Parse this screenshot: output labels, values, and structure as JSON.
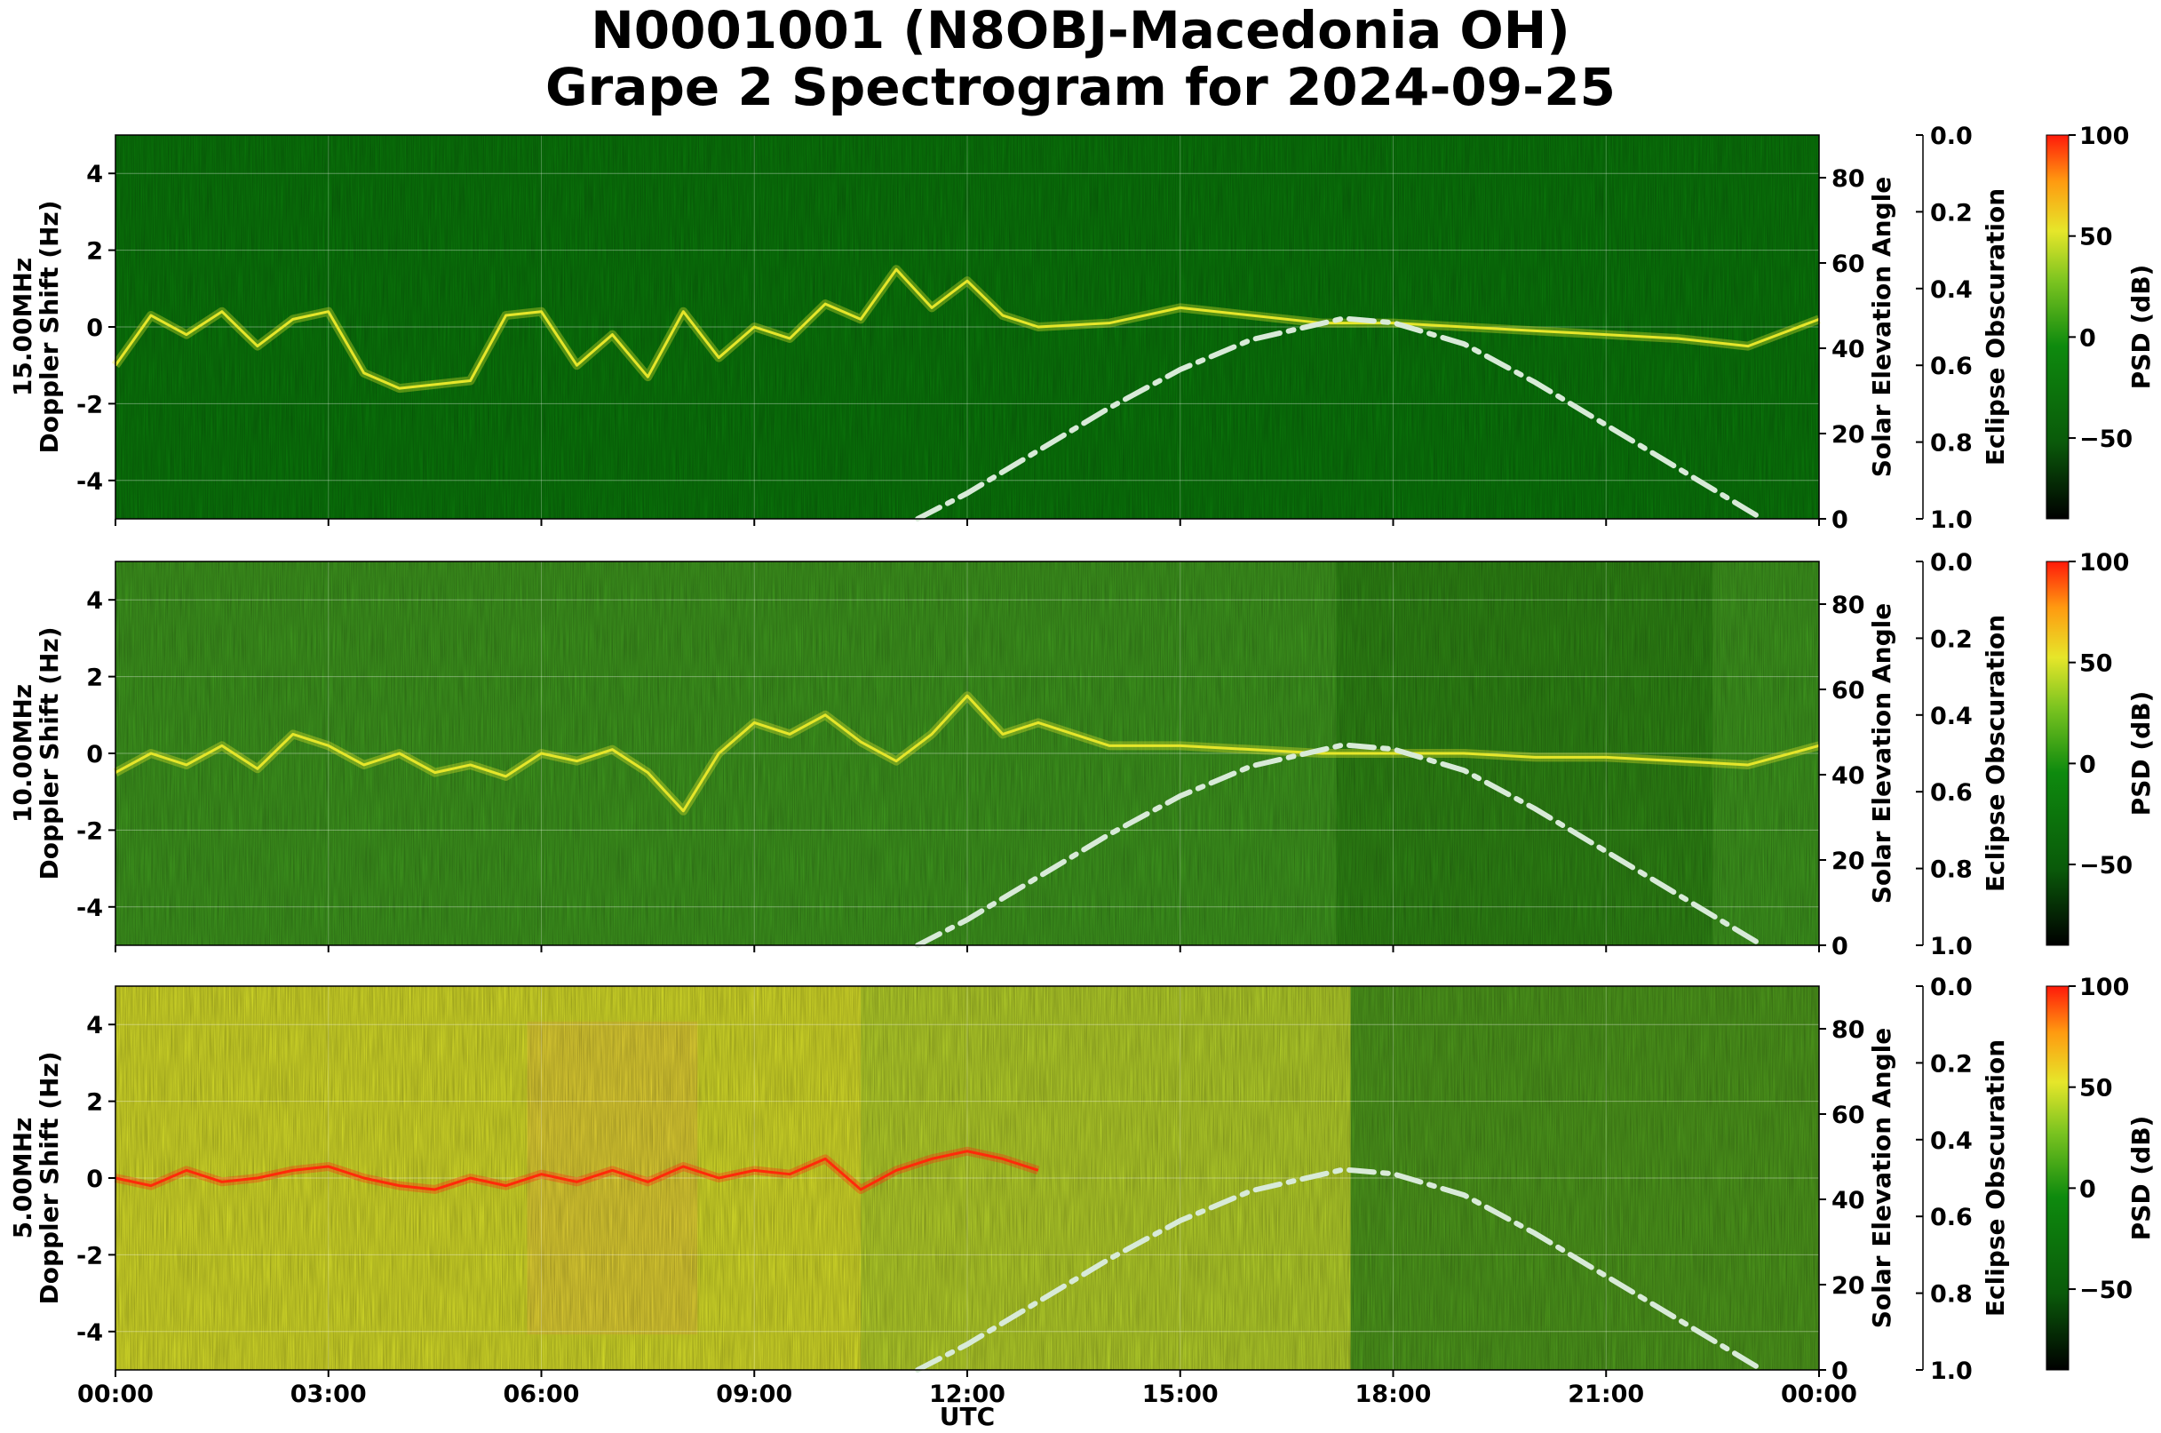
{
  "figure": {
    "title_line1": "N0001001 (N8OBJ-Macedonia OH)",
    "title_line2": "Grape 2 Spectrogram for 2024-09-25",
    "xlabel": "UTC"
  },
  "chart_data": [
    {
      "type": "heatmap",
      "panel": "15.00MHz",
      "ylabel_line1": "15.00MHz",
      "ylabel_line2": "Doppler Shift (Hz)",
      "xlabel": "UTC",
      "x_ticks": [
        "00:00",
        "03:00",
        "06:00",
        "09:00",
        "12:00",
        "15:00",
        "18:00",
        "21:00",
        "00:00"
      ],
      "y_ticks": [
        -4,
        -2,
        0,
        2,
        4
      ],
      "ylim": [
        -5,
        5
      ],
      "xlim_hours": [
        0,
        24
      ],
      "background_level": "low",
      "doppler_trace_hz": [
        [
          0,
          -1.0
        ],
        [
          0.5,
          0.3
        ],
        [
          1,
          -0.2
        ],
        [
          1.5,
          0.4
        ],
        [
          2,
          -0.5
        ],
        [
          2.5,
          0.2
        ],
        [
          3,
          0.4
        ],
        [
          3.5,
          -1.2
        ],
        [
          4,
          -1.6
        ],
        [
          5,
          -1.4
        ],
        [
          5.5,
          0.3
        ],
        [
          6,
          0.4
        ],
        [
          6.5,
          -1.0
        ],
        [
          7,
          -0.2
        ],
        [
          7.5,
          -1.3
        ],
        [
          8,
          0.4
        ],
        [
          8.5,
          -0.8
        ],
        [
          9,
          0.0
        ],
        [
          9.5,
          -0.3
        ],
        [
          10,
          0.6
        ],
        [
          10.5,
          0.2
        ],
        [
          11,
          1.5
        ],
        [
          11.5,
          0.5
        ],
        [
          12,
          1.2
        ],
        [
          12.5,
          0.3
        ],
        [
          13,
          0.0
        ],
        [
          14,
          0.1
        ],
        [
          15,
          0.5
        ],
        [
          16,
          0.3
        ],
        [
          17,
          0.1
        ],
        [
          18,
          0.1
        ],
        [
          19,
          0.0
        ],
        [
          20,
          -0.1
        ],
        [
          21,
          -0.2
        ],
        [
          22,
          -0.3
        ],
        [
          23,
          -0.5
        ],
        [
          24,
          0.2
        ]
      ],
      "solar_elevation_right_axis": {
        "label": "Solar Elevation Angle",
        "ticks": [
          0,
          20,
          40,
          60,
          80
        ],
        "ylim": [
          0,
          90
        ]
      },
      "solar_elevation_deg": [
        [
          11.3,
          0
        ],
        [
          12,
          6
        ],
        [
          13,
          16
        ],
        [
          14,
          26
        ],
        [
          15,
          35
        ],
        [
          16,
          42
        ],
        [
          17.3,
          47
        ],
        [
          18,
          46
        ],
        [
          19,
          41
        ],
        [
          20,
          32
        ],
        [
          21,
          22
        ],
        [
          22,
          12
        ],
        [
          23,
          2
        ],
        [
          23.2,
          0
        ]
      ],
      "eclipse_axis": {
        "label": "Eclipse Obscuration",
        "ticks": [
          "0.0",
          "0.2",
          "0.4",
          "0.6",
          "0.8",
          "1.0"
        ]
      },
      "colorbar": {
        "label": "PSD (dB)",
        "ticks": [
          100,
          50,
          0,
          -50
        ],
        "range": [
          -90,
          100
        ]
      }
    },
    {
      "type": "heatmap",
      "panel": "10.00MHz",
      "ylabel_line1": "10.00MHz",
      "ylabel_line2": "Doppler Shift (Hz)",
      "xlabel": "UTC",
      "x_ticks": [
        "00:00",
        "03:00",
        "06:00",
        "09:00",
        "12:00",
        "15:00",
        "18:00",
        "21:00",
        "00:00"
      ],
      "y_ticks": [
        -4,
        -2,
        0,
        2,
        4
      ],
      "ylim": [
        -5,
        5
      ],
      "xlim_hours": [
        0,
        24
      ],
      "background_level": "medium",
      "doppler_trace_hz": [
        [
          0,
          -0.5
        ],
        [
          0.5,
          0.0
        ],
        [
          1,
          -0.3
        ],
        [
          1.5,
          0.2
        ],
        [
          2,
          -0.4
        ],
        [
          2.5,
          0.5
        ],
        [
          3,
          0.2
        ],
        [
          3.5,
          -0.3
        ],
        [
          4,
          0.0
        ],
        [
          4.5,
          -0.5
        ],
        [
          5,
          -0.3
        ],
        [
          5.5,
          -0.6
        ],
        [
          6,
          0.0
        ],
        [
          6.5,
          -0.2
        ],
        [
          7,
          0.1
        ],
        [
          7.5,
          -0.5
        ],
        [
          8,
          -1.5
        ],
        [
          8.5,
          0.0
        ],
        [
          9,
          0.8
        ],
        [
          9.5,
          0.5
        ],
        [
          10,
          1.0
        ],
        [
          10.5,
          0.3
        ],
        [
          11,
          -0.2
        ],
        [
          11.5,
          0.5
        ],
        [
          12,
          1.5
        ],
        [
          12.5,
          0.5
        ],
        [
          13,
          0.8
        ],
        [
          14,
          0.2
        ],
        [
          15,
          0.2
        ],
        [
          16,
          0.1
        ],
        [
          17,
          0.0
        ],
        [
          18,
          0.0
        ],
        [
          19,
          0.0
        ],
        [
          20,
          -0.1
        ],
        [
          21,
          -0.1
        ],
        [
          22,
          -0.2
        ],
        [
          23,
          -0.3
        ],
        [
          24,
          0.2
        ]
      ],
      "solar_elevation_right_axis": {
        "label": "Solar Elevation Angle",
        "ticks": [
          0,
          20,
          40,
          60,
          80
        ],
        "ylim": [
          0,
          90
        ]
      },
      "solar_elevation_deg": [
        [
          11.3,
          0
        ],
        [
          12,
          6
        ],
        [
          13,
          16
        ],
        [
          14,
          26
        ],
        [
          15,
          35
        ],
        [
          16,
          42
        ],
        [
          17.3,
          47
        ],
        [
          18,
          46
        ],
        [
          19,
          41
        ],
        [
          20,
          32
        ],
        [
          21,
          22
        ],
        [
          22,
          12
        ],
        [
          23,
          2
        ],
        [
          23.2,
          0
        ]
      ],
      "eclipse_axis": {
        "label": "Eclipse Obscuration",
        "ticks": [
          "0.0",
          "0.2",
          "0.4",
          "0.6",
          "0.8",
          "1.0"
        ]
      },
      "colorbar": {
        "label": "PSD (dB)",
        "ticks": [
          100,
          50,
          0,
          -50
        ],
        "range": [
          -90,
          100
        ]
      }
    },
    {
      "type": "heatmap",
      "panel": "5.00MHz",
      "ylabel_line1": "5.00MHz",
      "ylabel_line2": "Doppler Shift (Hz)",
      "xlabel": "UTC",
      "x_ticks": [
        "00:00",
        "03:00",
        "06:00",
        "09:00",
        "12:00",
        "15:00",
        "18:00",
        "21:00",
        "00:00"
      ],
      "y_ticks": [
        -4,
        -2,
        0,
        2,
        4
      ],
      "ylim": [
        -5,
        5
      ],
      "xlim_hours": [
        0,
        24
      ],
      "background_level": "high",
      "doppler_trace_hz": [
        [
          0,
          0.0
        ],
        [
          0.5,
          -0.2
        ],
        [
          1,
          0.2
        ],
        [
          1.5,
          -0.1
        ],
        [
          2,
          0.0
        ],
        [
          2.5,
          0.2
        ],
        [
          3,
          0.3
        ],
        [
          3.5,
          0.0
        ],
        [
          4,
          -0.2
        ],
        [
          4.5,
          -0.3
        ],
        [
          5,
          0.0
        ],
        [
          5.5,
          -0.2
        ],
        [
          6,
          0.1
        ],
        [
          6.5,
          -0.1
        ],
        [
          7,
          0.2
        ],
        [
          7.5,
          -0.1
        ],
        [
          8,
          0.3
        ],
        [
          8.5,
          0.0
        ],
        [
          9,
          0.2
        ],
        [
          9.5,
          0.1
        ],
        [
          10,
          0.5
        ],
        [
          10.5,
          -0.3
        ],
        [
          11,
          0.2
        ],
        [
          11.5,
          0.5
        ],
        [
          12,
          0.7
        ],
        [
          12.5,
          0.5
        ],
        [
          13,
          0.2
        ]
      ],
      "solar_elevation_right_axis": {
        "label": "Solar Elevation Angle",
        "ticks": [
          0,
          20,
          40,
          60,
          80
        ],
        "ylim": [
          0,
          90
        ]
      },
      "solar_elevation_deg": [
        [
          11.3,
          0
        ],
        [
          12,
          6
        ],
        [
          13,
          16
        ],
        [
          14,
          26
        ],
        [
          15,
          35
        ],
        [
          16,
          42
        ],
        [
          17.3,
          47
        ],
        [
          18,
          46
        ],
        [
          19,
          41
        ],
        [
          20,
          32
        ],
        [
          21,
          22
        ],
        [
          22,
          12
        ],
        [
          23,
          2
        ],
        [
          23.2,
          0
        ]
      ],
      "eclipse_axis": {
        "label": "Eclipse Obscuration",
        "ticks": [
          "0.0",
          "0.2",
          "0.4",
          "0.6",
          "0.8",
          "1.0"
        ]
      },
      "colorbar": {
        "label": "PSD (dB)",
        "ticks": [
          100,
          50,
          0,
          -50
        ],
        "range": [
          -90,
          100
        ]
      }
    }
  ],
  "colors": {
    "low_green": "#0a7a0a",
    "mid_green": "#3f9a1e",
    "yellow": "#e6e62a",
    "red": "#ff2a0a",
    "solar_curve": "#d8ead8"
  }
}
